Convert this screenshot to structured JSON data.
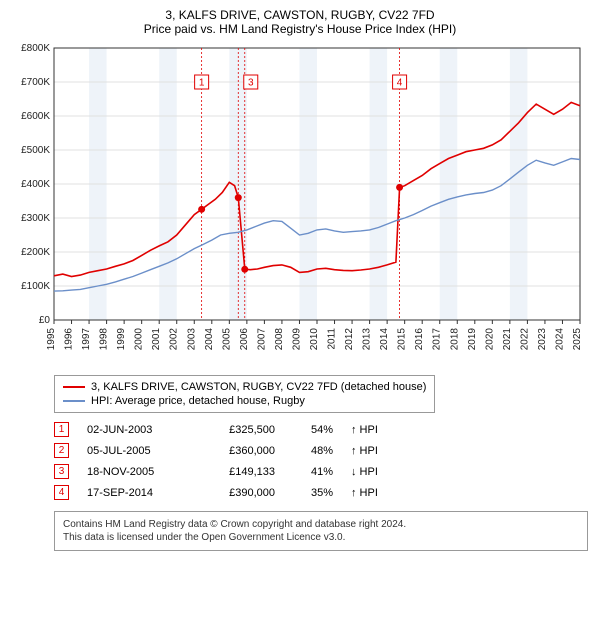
{
  "title": "3, KALFS DRIVE, CAWSTON, RUGBY, CV22 7FD",
  "subtitle": "Price paid vs. HM Land Registry's House Price Index (HPI)",
  "chart": {
    "type": "line",
    "background_color": "#ffffff",
    "grid_color": "#e0e0e0",
    "plot_bg_band_color": "#eef3f9",
    "axis_color": "#333333",
    "title_fontsize": 12,
    "label_fontsize": 10,
    "tick_fontsize": 10,
    "x": {
      "min": 1995,
      "max": 2025,
      "ticks": [
        1995,
        1996,
        1997,
        1998,
        1999,
        2000,
        2001,
        2002,
        2003,
        2004,
        2005,
        2006,
        2007,
        2008,
        2009,
        2010,
        2011,
        2012,
        2013,
        2014,
        2015,
        2016,
        2017,
        2018,
        2019,
        2020,
        2021,
        2022,
        2023,
        2024,
        2025
      ],
      "tick_rotation": -90
    },
    "y": {
      "min": 0,
      "max": 800000,
      "ticks": [
        0,
        100000,
        200000,
        300000,
        400000,
        500000,
        600000,
        700000,
        800000
      ],
      "tick_labels": [
        "£0",
        "£100K",
        "£200K",
        "£300K",
        "£400K",
        "£500K",
        "£600K",
        "£700K",
        "£800K"
      ]
    },
    "series": [
      {
        "name": "3, KALFS DRIVE, CAWSTON, RUGBY, CV22 7FD (detached house)",
        "color": "#e00000",
        "line_width": 1.6,
        "data": [
          [
            1995.0,
            130000
          ],
          [
            1995.5,
            135000
          ],
          [
            1996.0,
            128000
          ],
          [
            1996.5,
            132000
          ],
          [
            1997.0,
            140000
          ],
          [
            1997.5,
            145000
          ],
          [
            1998.0,
            150000
          ],
          [
            1998.5,
            158000
          ],
          [
            1999.0,
            165000
          ],
          [
            1999.5,
            175000
          ],
          [
            2000.0,
            190000
          ],
          [
            2000.5,
            205000
          ],
          [
            2001.0,
            218000
          ],
          [
            2001.5,
            230000
          ],
          [
            2002.0,
            250000
          ],
          [
            2002.5,
            280000
          ],
          [
            2003.0,
            310000
          ],
          [
            2003.42,
            325500
          ],
          [
            2003.8,
            340000
          ],
          [
            2004.2,
            355000
          ],
          [
            2004.6,
            375000
          ],
          [
            2005.0,
            405000
          ],
          [
            2005.3,
            395000
          ],
          [
            2005.51,
            360000
          ],
          [
            2005.88,
            149133
          ],
          [
            2006.2,
            148000
          ],
          [
            2006.6,
            150000
          ],
          [
            2007.0,
            155000
          ],
          [
            2007.5,
            160000
          ],
          [
            2008.0,
            162000
          ],
          [
            2008.5,
            155000
          ],
          [
            2009.0,
            140000
          ],
          [
            2009.5,
            142000
          ],
          [
            2010.0,
            150000
          ],
          [
            2010.5,
            152000
          ],
          [
            2011.0,
            148000
          ],
          [
            2011.5,
            146000
          ],
          [
            2012.0,
            145000
          ],
          [
            2012.5,
            147000
          ],
          [
            2013.0,
            150000
          ],
          [
            2013.5,
            155000
          ],
          [
            2014.0,
            162000
          ],
          [
            2014.5,
            170000
          ],
          [
            2014.71,
            390000
          ],
          [
            2015.0,
            395000
          ],
          [
            2015.5,
            410000
          ],
          [
            2016.0,
            425000
          ],
          [
            2016.5,
            445000
          ],
          [
            2017.0,
            460000
          ],
          [
            2017.5,
            475000
          ],
          [
            2018.0,
            485000
          ],
          [
            2018.5,
            495000
          ],
          [
            2019.0,
            500000
          ],
          [
            2019.5,
            505000
          ],
          [
            2020.0,
            515000
          ],
          [
            2020.5,
            530000
          ],
          [
            2021.0,
            555000
          ],
          [
            2021.5,
            580000
          ],
          [
            2022.0,
            610000
          ],
          [
            2022.5,
            635000
          ],
          [
            2023.0,
            620000
          ],
          [
            2023.5,
            605000
          ],
          [
            2024.0,
            620000
          ],
          [
            2024.5,
            640000
          ],
          [
            2025.0,
            630000
          ]
        ]
      },
      {
        "name": "HPI: Average price, detached house, Rugby",
        "color": "#6b8fc9",
        "line_width": 1.4,
        "data": [
          [
            1995.0,
            85000
          ],
          [
            1995.5,
            86000
          ],
          [
            1996.0,
            88000
          ],
          [
            1996.5,
            90000
          ],
          [
            1997.0,
            95000
          ],
          [
            1997.5,
            100000
          ],
          [
            1998.0,
            105000
          ],
          [
            1998.5,
            112000
          ],
          [
            1999.0,
            120000
          ],
          [
            1999.5,
            128000
          ],
          [
            2000.0,
            138000
          ],
          [
            2000.5,
            148000
          ],
          [
            2001.0,
            158000
          ],
          [
            2001.5,
            168000
          ],
          [
            2002.0,
            180000
          ],
          [
            2002.5,
            195000
          ],
          [
            2003.0,
            210000
          ],
          [
            2003.5,
            222000
          ],
          [
            2004.0,
            235000
          ],
          [
            2004.5,
            250000
          ],
          [
            2005.0,
            255000
          ],
          [
            2005.5,
            258000
          ],
          [
            2006.0,
            265000
          ],
          [
            2006.5,
            275000
          ],
          [
            2007.0,
            285000
          ],
          [
            2007.5,
            292000
          ],
          [
            2008.0,
            290000
          ],
          [
            2008.5,
            270000
          ],
          [
            2009.0,
            250000
          ],
          [
            2009.5,
            255000
          ],
          [
            2010.0,
            265000
          ],
          [
            2010.5,
            268000
          ],
          [
            2011.0,
            262000
          ],
          [
            2011.5,
            258000
          ],
          [
            2012.0,
            260000
          ],
          [
            2012.5,
            262000
          ],
          [
            2013.0,
            265000
          ],
          [
            2013.5,
            272000
          ],
          [
            2014.0,
            282000
          ],
          [
            2014.5,
            292000
          ],
          [
            2015.0,
            300000
          ],
          [
            2015.5,
            310000
          ],
          [
            2016.0,
            322000
          ],
          [
            2016.5,
            335000
          ],
          [
            2017.0,
            345000
          ],
          [
            2017.5,
            355000
          ],
          [
            2018.0,
            362000
          ],
          [
            2018.5,
            368000
          ],
          [
            2019.0,
            372000
          ],
          [
            2019.5,
            375000
          ],
          [
            2020.0,
            382000
          ],
          [
            2020.5,
            395000
          ],
          [
            2021.0,
            415000
          ],
          [
            2021.5,
            435000
          ],
          [
            2022.0,
            455000
          ],
          [
            2022.5,
            470000
          ],
          [
            2023.0,
            462000
          ],
          [
            2023.5,
            455000
          ],
          [
            2024.0,
            465000
          ],
          [
            2024.5,
            475000
          ],
          [
            2025.0,
            472000
          ]
        ]
      }
    ],
    "markers": [
      {
        "n": 1,
        "x": 2003.42,
        "y": 325500,
        "label_y": 700000,
        "color": "#e00000"
      },
      {
        "n": 2,
        "x": 2005.51,
        "y": 360000,
        "color": "#e00000",
        "hidden_label": true
      },
      {
        "n": 3,
        "x": 2005.88,
        "y": 149133,
        "label_y": 700000,
        "color": "#e00000",
        "label_x_offset": 6
      },
      {
        "n": 4,
        "x": 2014.71,
        "y": 390000,
        "label_y": 700000,
        "color": "#e00000"
      }
    ]
  },
  "legend": {
    "items": [
      {
        "color": "#e00000",
        "label": "3, KALFS DRIVE, CAWSTON, RUGBY, CV22 7FD (detached house)"
      },
      {
        "color": "#6b8fc9",
        "label": "HPI: Average price, detached house, Rugby"
      }
    ]
  },
  "transactions": [
    {
      "n": 1,
      "date": "02-JUN-2003",
      "price": "£325,500",
      "pct": "54%",
      "dir": "↑ HPI",
      "color": "#e00000"
    },
    {
      "n": 2,
      "date": "05-JUL-2005",
      "price": "£360,000",
      "pct": "48%",
      "dir": "↑ HPI",
      "color": "#e00000"
    },
    {
      "n": 3,
      "date": "18-NOV-2005",
      "price": "£149,133",
      "pct": "41%",
      "dir": "↓ HPI",
      "color": "#e00000"
    },
    {
      "n": 4,
      "date": "17-SEP-2014",
      "price": "£390,000",
      "pct": "35%",
      "dir": "↑ HPI",
      "color": "#e00000"
    }
  ],
  "footer": {
    "line1": "Contains HM Land Registry data © Crown copyright and database right 2024.",
    "line2": "This data is licensed under the Open Government Licence v3.0."
  }
}
